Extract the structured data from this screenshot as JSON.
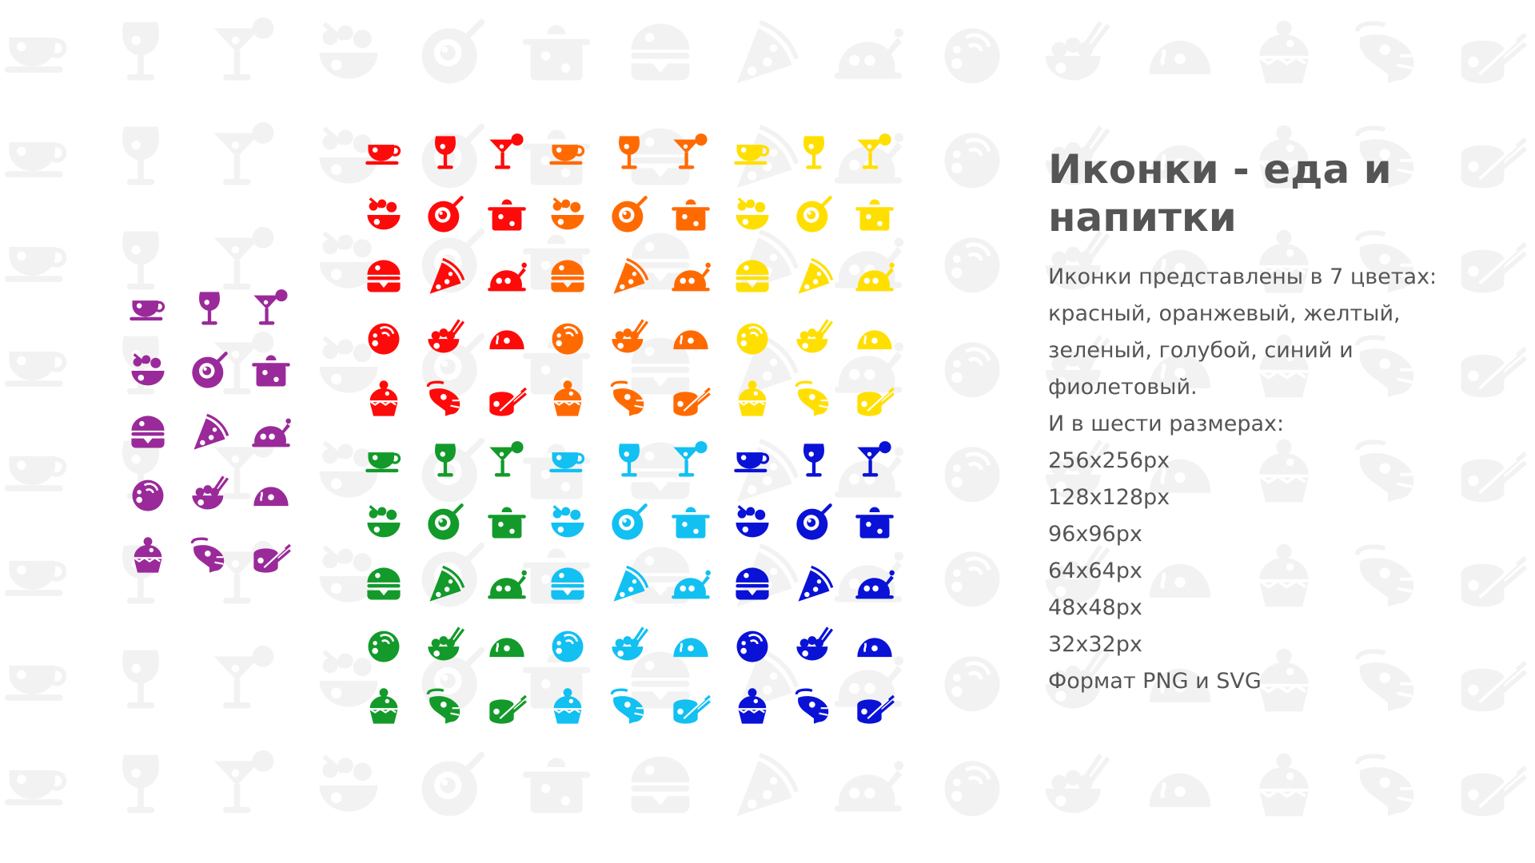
{
  "title": "Иконки - еда и напитки",
  "description_lines": [
    "Иконки представлены в 7 цветах:",
    "красный, оранжевый, желтый,",
    "зеленый, голубой, синий и",
    "фиолетовый.",
    "И в шести размерах:",
    "256x256px",
    "128x128px",
    "96x96px",
    "64x64px",
    "48x48px",
    "32x32px",
    "Формат PNG и SVG"
  ],
  "icon_set": [
    "coffee-cup-icon",
    "wine-glass-icon",
    "cocktail-icon",
    "salad-bowl-icon",
    "fried-egg-pan-icon",
    "cooking-pot-icon",
    "burger-icon",
    "pizza-slice-icon",
    "roast-chicken-icon",
    "soup-bowl-icon",
    "rice-bowl-chopsticks-icon",
    "taco-icon",
    "cupcake-icon",
    "shrimp-icon",
    "sushi-roll-icon"
  ],
  "color_blocks": [
    {
      "name": "red",
      "color": "#ff0a0a"
    },
    {
      "name": "orange",
      "color": "#ff6a00"
    },
    {
      "name": "yellow",
      "color": "#ffdf00"
    },
    {
      "name": "green",
      "color": "#139a2a"
    },
    {
      "name": "light-blue",
      "color": "#12c0f2"
    },
    {
      "name": "blue",
      "color": "#0a12d6"
    },
    {
      "name": "purple",
      "color": "#9a2a9a"
    }
  ],
  "watermark_color": "#f2f2f2"
}
